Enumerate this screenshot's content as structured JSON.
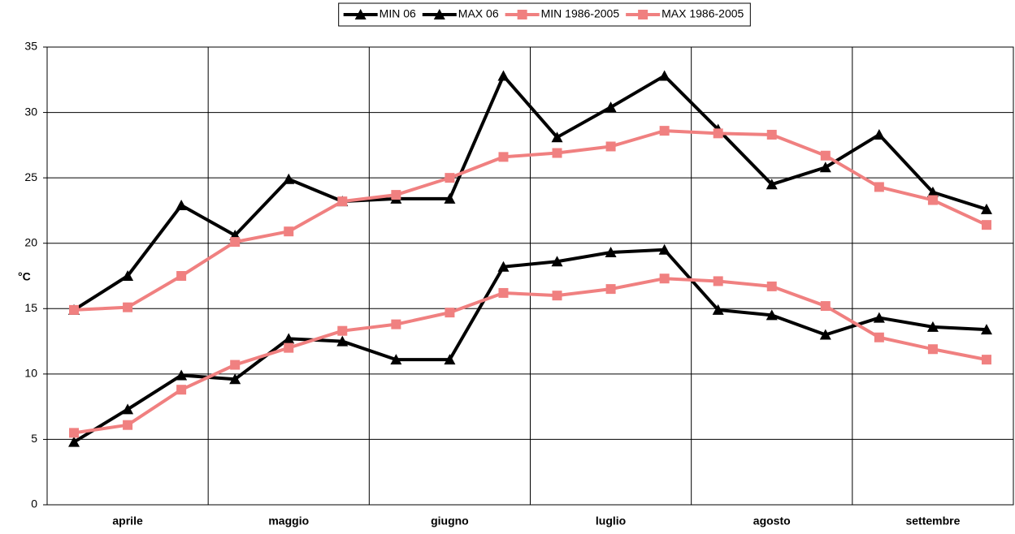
{
  "chart_data": {
    "type": "line",
    "categories": [
      null,
      "aprile",
      null,
      null,
      "maggio",
      null,
      null,
      "giugno",
      null,
      null,
      "luglio",
      null,
      null,
      "agosto",
      null,
      null,
      "settembre",
      null
    ],
    "series": [
      {
        "name": "MIN 06",
        "color": "#000000",
        "marker": "triangle",
        "values": [
          4.8,
          7.3,
          9.9,
          9.6,
          12.7,
          12.5,
          11.1,
          11.1,
          18.2,
          18.6,
          19.3,
          19.5,
          14.9,
          14.5,
          13.0,
          14.3,
          13.6,
          13.4
        ]
      },
      {
        "name": "MAX 06",
        "color": "#000000",
        "marker": "triangle",
        "values": [
          14.9,
          17.5,
          22.9,
          20.6,
          24.9,
          23.2,
          23.4,
          23.4,
          32.8,
          28.1,
          30.4,
          32.8,
          28.7,
          24.5,
          25.8,
          28.3,
          23.9,
          22.6
        ]
      },
      {
        "name": "MIN 1986-2005",
        "color": "#f08080",
        "marker": "square",
        "values": [
          5.5,
          6.1,
          8.8,
          10.7,
          12.0,
          13.3,
          13.8,
          14.7,
          16.2,
          16.0,
          16.5,
          17.3,
          17.1,
          16.7,
          15.2,
          12.8,
          11.9,
          11.1
        ]
      },
      {
        "name": "MAX 1986-2005",
        "color": "#f08080",
        "marker": "square",
        "values": [
          14.9,
          15.1,
          17.5,
          20.1,
          20.9,
          23.2,
          23.7,
          25.0,
          26.6,
          26.9,
          27.4,
          28.6,
          28.4,
          28.3,
          26.7,
          24.3,
          23.3,
          21.4
        ]
      }
    ],
    "y_label": "°C",
    "ylim": [
      0,
      35
    ],
    "yticks": [
      0,
      5,
      10,
      15,
      20,
      25,
      30,
      35
    ],
    "grid": true,
    "legend": "top"
  }
}
